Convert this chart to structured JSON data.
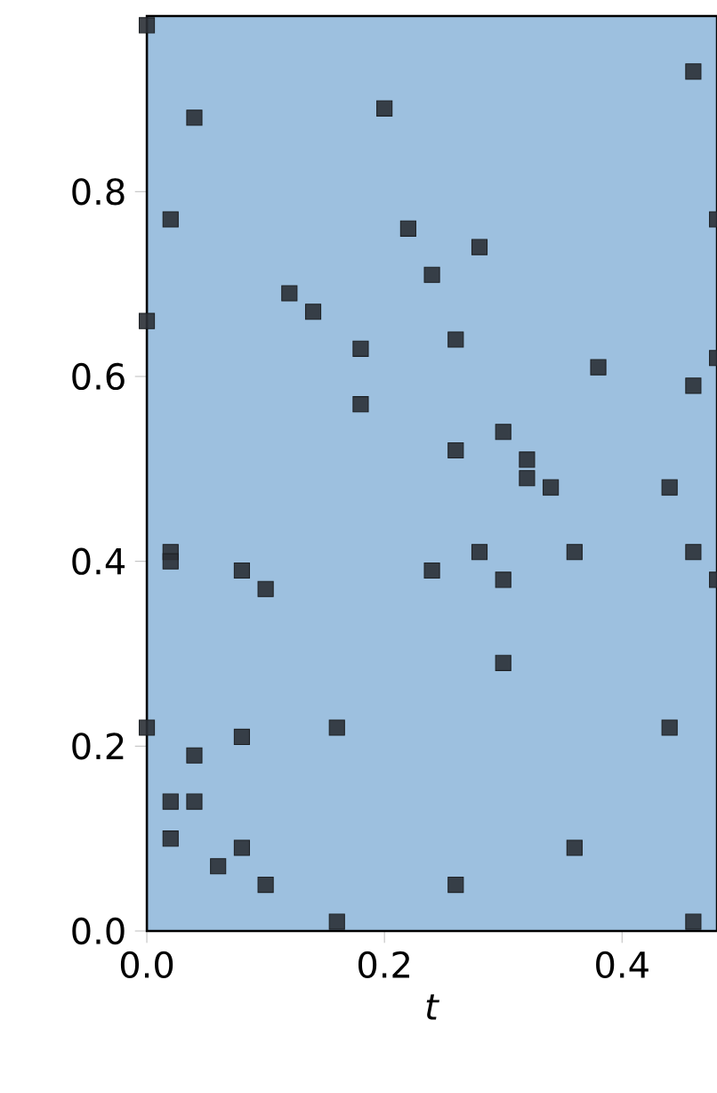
{
  "chart_data": {
    "type": "scatter",
    "xlabel": "*t*",
    "marker": "square",
    "color": "#2b3036",
    "x": [
      0,
      0.04,
      0.2,
      0.46,
      0.02,
      0.22,
      0.28,
      0.24,
      0.12,
      0.14,
      0,
      0.48,
      0.18,
      0.26,
      0.18,
      0.38,
      0.46,
      0.48,
      0.26,
      0.3,
      0.32,
      0.32,
      0.34,
      0.44,
      0.02,
      0.02,
      0.08,
      0.1,
      0.24,
      0.28,
      0.3,
      0.36,
      0.46,
      0.48,
      0.3,
      0,
      0.16,
      0.08,
      0.04,
      0.02,
      0.04,
      0.02,
      0.08,
      0.06,
      0.1,
      0.16,
      0.26,
      0.36,
      0.44,
      0.46
    ],
    "values": [
      0.98,
      0.88,
      0.89,
      0.93,
      0.77,
      0.76,
      0.74,
      0.71,
      0.69,
      0.67,
      0.66,
      0.77,
      0.63,
      0.64,
      0.57,
      0.61,
      0.59,
      0.62,
      0.52,
      0.54,
      0.51,
      0.49,
      0.48,
      0.48,
      0.41,
      0.4,
      0.39,
      0.37,
      0.39,
      0.41,
      0.38,
      0.41,
      0.41,
      0.38,
      0.29,
      0.22,
      0.22,
      0.21,
      0.19,
      0.14,
      0.14,
      0.1,
      0.09,
      0.07,
      0.05,
      0.01,
      0.05,
      0.09,
      0.22,
      0.01
    ],
    "xlim": [
      0,
      0.48
    ],
    "ylim": [
      0,
      0.99
    ],
    "xticks": [
      {
        "value": 0,
        "label": "0.0"
      },
      {
        "value": 0.2,
        "label": "0.2"
      },
      {
        "value": 0.4,
        "label": "0.4"
      }
    ],
    "yticks": [
      {
        "value": 0,
        "label": "0.0"
      },
      {
        "value": 0.2,
        "label": "0.2"
      },
      {
        "value": 0.4,
        "label": "0.4"
      },
      {
        "value": 0.6,
        "label": "0.6"
      },
      {
        "value": 0.8,
        "label": "0.8"
      }
    ]
  }
}
